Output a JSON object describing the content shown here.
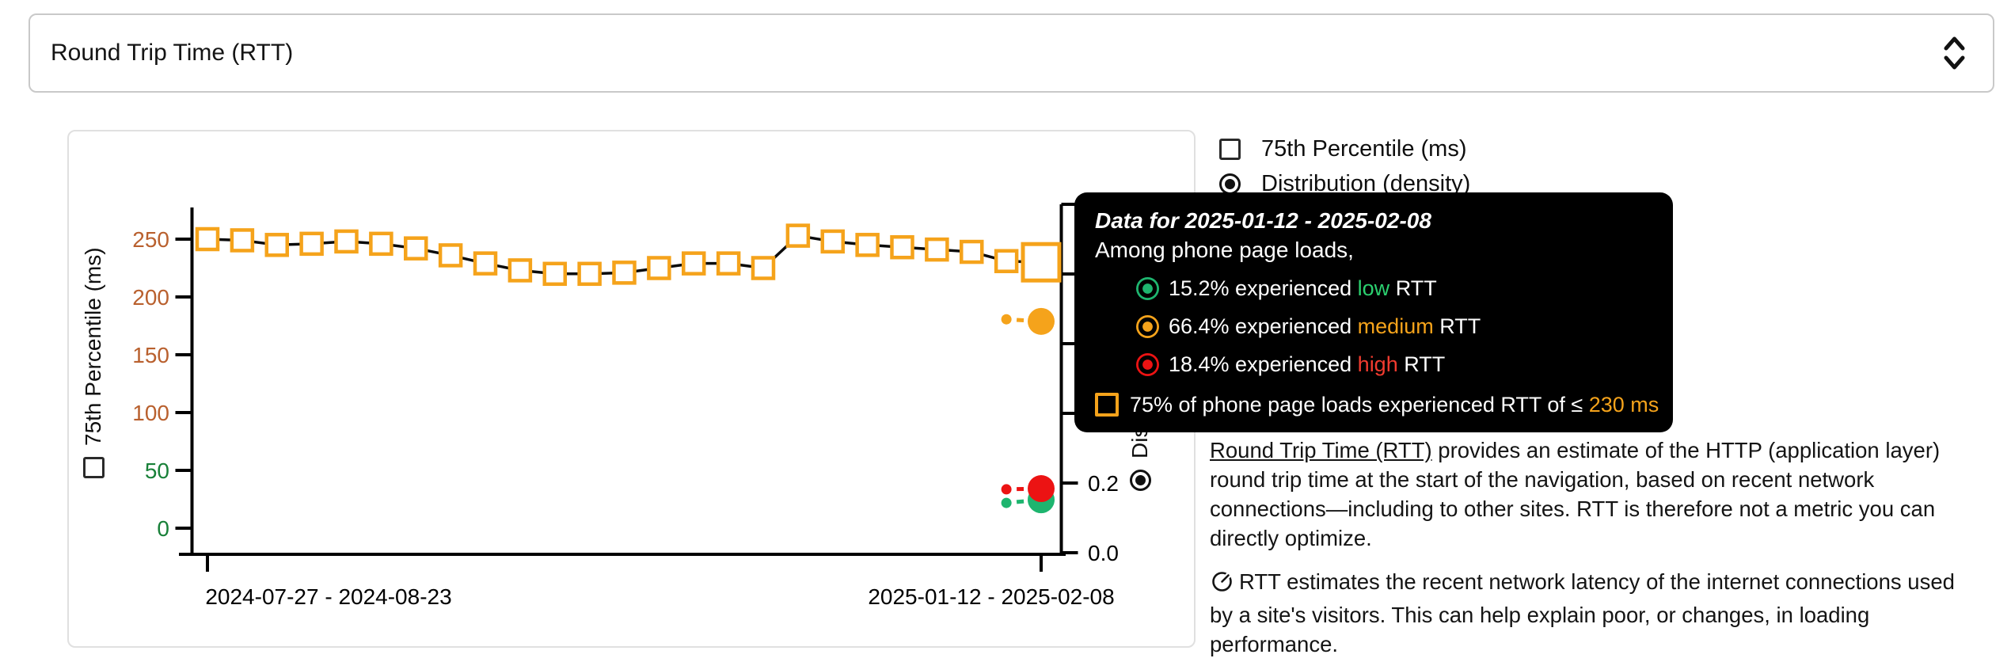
{
  "select": {
    "label": "Round Trip Time (RTT)",
    "icon": "unfold-more-icon"
  },
  "legend": {
    "items": [
      {
        "control": "checkbox",
        "checked": false,
        "label": "75th Percentile (ms)"
      },
      {
        "control": "radio",
        "checked": true,
        "label": "Distribution (density)"
      }
    ]
  },
  "chart_data": {
    "type": "line",
    "title": "Round Trip Time (RTT)",
    "x_tick_labels": [
      "2024-07-27 - 2024-08-23",
      "2025-01-12 - 2025-02-08"
    ],
    "x_tick_indices": [
      0,
      24
    ],
    "n_points": 25,
    "y_left": {
      "label": "75th Percentile (ms)",
      "ticks": [
        0,
        50,
        100,
        150,
        200,
        250
      ],
      "green_max": 50,
      "green_color": "#188038",
      "warm_color": "#B9602E",
      "range": [
        0,
        250
      ]
    },
    "y_right": {
      "label": "Distribution (density)",
      "tick_labels": [
        "0.0",
        "0.2"
      ],
      "tick_values": [
        0,
        0.2
      ],
      "tick_step": 0.2,
      "max": 1.0
    },
    "series": [
      {
        "name": "75th Percentile (ms)",
        "line_color": "#0b0b0b",
        "marker": "square",
        "marker_color": "#F5A31B",
        "values": [
          250,
          249,
          245,
          246,
          248,
          246,
          242,
          236,
          229,
          223,
          220,
          220,
          221,
          225,
          229,
          229,
          225,
          253,
          248,
          245,
          243,
          241,
          239,
          231,
          230
        ],
        "highlight_index": 24,
        "highlight_value": 230
      }
    ],
    "density_points": [
      {
        "name": "low",
        "color": "#1EB56F",
        "prev": 0.143,
        "last": 0.152
      },
      {
        "name": "medium",
        "color": "#F5A31B",
        "prev": 0.67,
        "last": 0.664
      },
      {
        "name": "high",
        "color": "#EC1313",
        "prev": 0.182,
        "last": 0.184
      }
    ],
    "grid": false,
    "legend_position": "top-right"
  },
  "tooltip": {
    "title": "Data for 2025-01-12 - 2025-02-08",
    "subtitle": "Among phone page loads,",
    "items": [
      {
        "marker": "circle-icon",
        "color": "#1EB56F",
        "keyword_color": "#2BD06F",
        "prefix": "15.2% experienced ",
        "keyword": "low",
        "suffix": " RTT"
      },
      {
        "marker": "circle-icon",
        "color": "#F5A31B",
        "keyword_color": "#F5A31B",
        "prefix": "66.4% experienced ",
        "keyword": "medium",
        "suffix": " RTT"
      },
      {
        "marker": "circle-icon",
        "color": "#EC1313",
        "keyword_color": "#F23B2F",
        "prefix": "18.4% experienced ",
        "keyword": "high",
        "suffix": " RTT"
      }
    ],
    "threshold": {
      "marker": "square-icon",
      "color": "#F5A31B",
      "prefix": "75% of phone page loads experienced RTT of ≤ ",
      "value": "230 ms"
    }
  },
  "description": {
    "p1_link": "Round Trip Time (RTT)",
    "p1_rest": " provides an estimate of the HTTP (application layer)\nround trip time at the start of the navigation, based on recent network\nconnections—including to other sites. RTT is therefore not a metric you can\ndirectly optimize.",
    "p2_icon": "speedometer-icon",
    "p2_text": "RTT estimates the recent network latency of the internet connections used\nby a site's visitors. This can help explain poor, or changes, in loading\nperformance."
  }
}
